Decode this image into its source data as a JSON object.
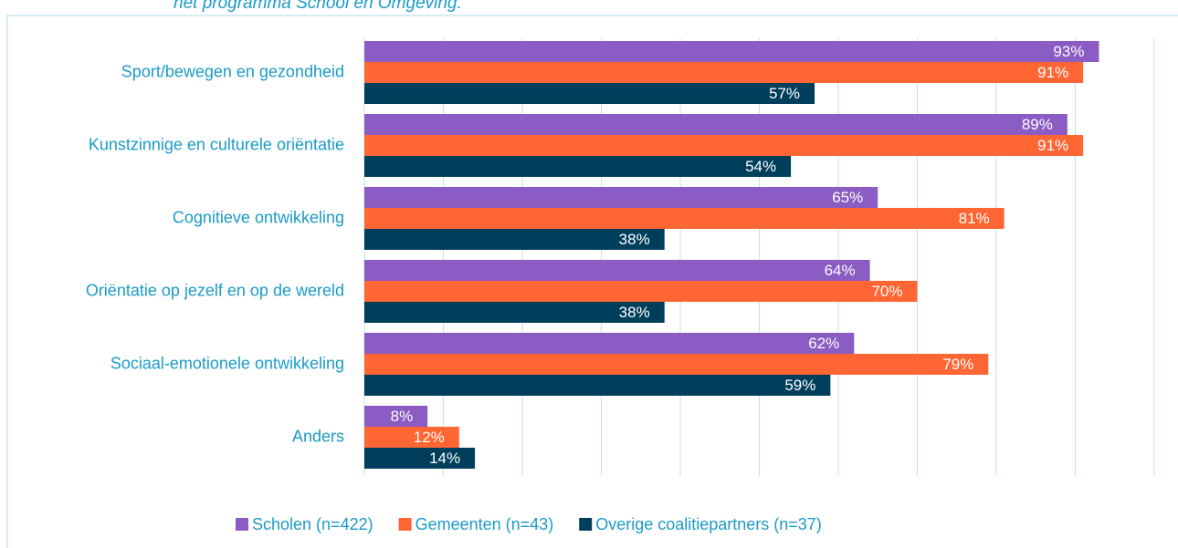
{
  "chart_data": {
    "type": "hbar",
    "title": "het programma School en Omgeving.",
    "categories": [
      "Sport/bewegen en gezondheid",
      "Kunstzinnige en culturele oriëntatie",
      "Cognitieve ontwikkeling",
      "Oriëntatie op jezelf en op de wereld",
      "Sociaal-emotionele ontwikkeling",
      "Anders"
    ],
    "series": [
      {
        "name": "Scholen (n=422)",
        "color": "#8a5cc4",
        "values": [
          93,
          89,
          65,
          64,
          62,
          8
        ],
        "value_labels": [
          "93%",
          "89%",
          "65%",
          "64%",
          "62%",
          "8%"
        ]
      },
      {
        "name": "Gemeenten (n=43)",
        "color": "#ff6633",
        "values": [
          91,
          91,
          81,
          70,
          79,
          12
        ],
        "value_labels": [
          "91%",
          "91%",
          "81%",
          "70%",
          "79%",
          "12%"
        ]
      },
      {
        "name": "Overige coalitiepartners (n=37)",
        "color": "#003f5c",
        "values": [
          57,
          54,
          38,
          38,
          59,
          14
        ],
        "value_labels": [
          "57%",
          "54%",
          "38%",
          "38%",
          "59%",
          "14%"
        ]
      }
    ],
    "xlim": [
      0,
      100
    ],
    "xticks": [
      0,
      10,
      20,
      30,
      40,
      50,
      60,
      70,
      80,
      90,
      100
    ],
    "grid": true,
    "legend": "bottom"
  }
}
